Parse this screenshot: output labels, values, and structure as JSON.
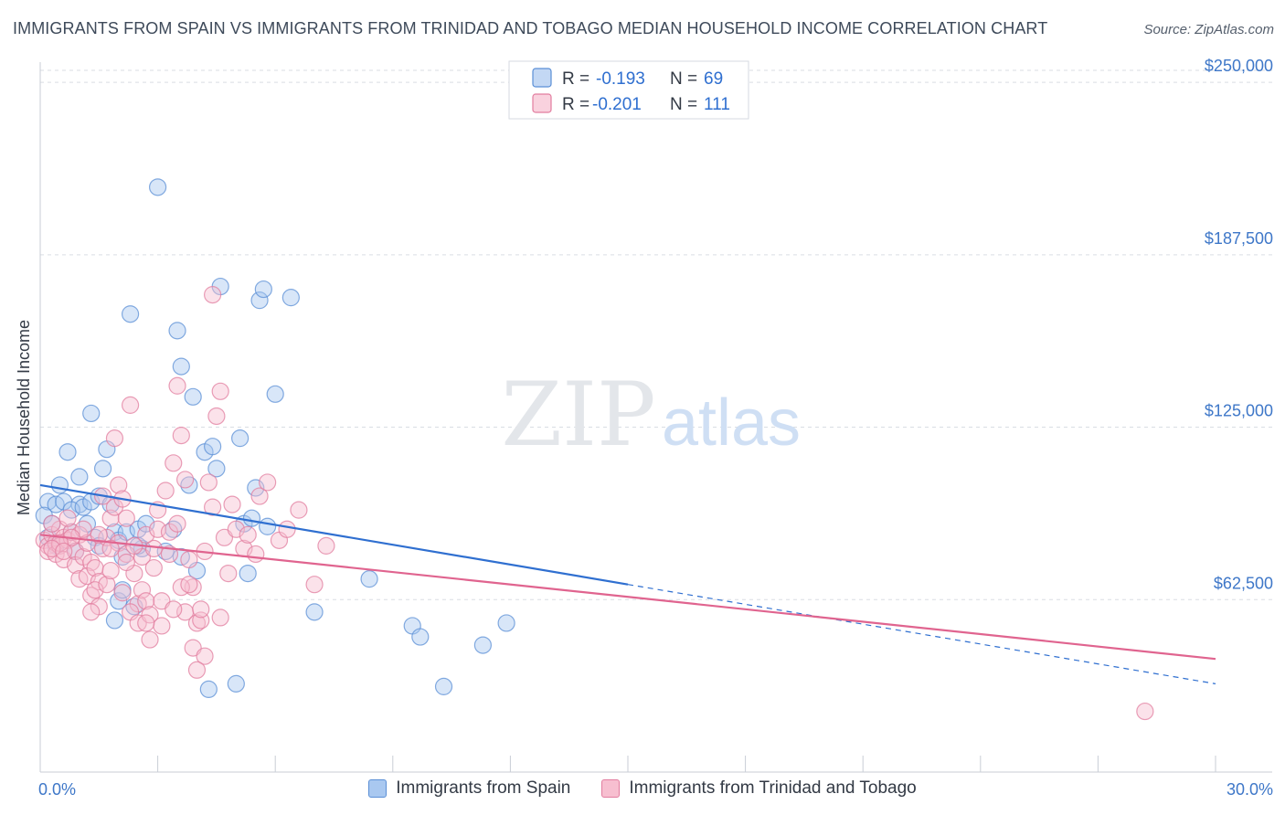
{
  "title": "IMMIGRANTS FROM SPAIN VS IMMIGRANTS FROM TRINIDAD AND TOBAGO MEDIAN HOUSEHOLD INCOME CORRELATION CHART",
  "source": "Source: ZipAtlas.com",
  "watermark": {
    "zip": "ZIP",
    "atlas": "atlas"
  },
  "colors": {
    "spain_fill": "#a9c8f0",
    "spain_stroke": "#5b8fd6",
    "spain_line": "#2f6fd0",
    "tt_fill": "#f7bfd0",
    "tt_stroke": "#e27d9f",
    "tt_line": "#e0648f",
    "grid": "#d9dde3",
    "label": "#3e77c8"
  },
  "legend": {
    "items": [
      {
        "r_label": "R = ",
        "r_value": "-0.193",
        "n_label": "N = ",
        "n_value": "69"
      },
      {
        "r_label": "R = ",
        "r_value": "-0.201",
        "n_label": "N = ",
        "n_value": "111"
      }
    ]
  },
  "bottom_legend": [
    "Immigrants from Spain",
    "Immigrants from Trinidad and Tobago"
  ],
  "chart_data": {
    "type": "scatter",
    "xlabel": "",
    "ylabel": "Median Household Income",
    "xlim": [
      0,
      30
    ],
    "ylim": [
      0,
      255000
    ],
    "x_tick_labels": [
      {
        "value": 0,
        "label": "0.0%"
      },
      {
        "value": 30,
        "label": "30.0%"
      }
    ],
    "y_ticks": [
      {
        "value": 62500,
        "label": "$62,500"
      },
      {
        "value": 125000,
        "label": "$125,000"
      },
      {
        "value": 187500,
        "label": "$187,500"
      },
      {
        "value": 250000,
        "label": "$250,000"
      }
    ],
    "series": [
      {
        "name": "Immigrants from Spain",
        "r": -0.193,
        "n": 69,
        "trend": {
          "x0": 0,
          "y0": 104000,
          "x1": 15,
          "y1": 68000,
          "dash_to_x": 30,
          "dash_to_y": 32000
        },
        "points": [
          [
            0.2,
            98000
          ],
          [
            0.4,
            97000
          ],
          [
            0.1,
            93000
          ],
          [
            0.3,
            90000
          ],
          [
            0.5,
            104000
          ],
          [
            0.6,
            98000
          ],
          [
            0.2,
            85000
          ],
          [
            0.4,
            82000
          ],
          [
            0.7,
            116000
          ],
          [
            0.8,
            87000
          ],
          [
            1.0,
            107000
          ],
          [
            1.0,
            97000
          ],
          [
            0.8,
            95000
          ],
          [
            1.1,
            96000
          ],
          [
            1.2,
            90000
          ],
          [
            0.9,
            80000
          ],
          [
            1.3,
            98000
          ],
          [
            1.4,
            85000
          ],
          [
            1.5,
            100000
          ],
          [
            1.6,
            110000
          ],
          [
            1.7,
            117000
          ],
          [
            1.5,
            82000
          ],
          [
            1.3,
            130000
          ],
          [
            1.8,
            97000
          ],
          [
            1.9,
            87000
          ],
          [
            2.0,
            84000
          ],
          [
            2.1,
            78000
          ],
          [
            2.2,
            87000
          ],
          [
            2.0,
            62000
          ],
          [
            1.9,
            55000
          ],
          [
            2.1,
            66000
          ],
          [
            2.5,
            88000
          ],
          [
            2.6,
            81000
          ],
          [
            2.3,
            166000
          ],
          [
            3.2,
            80000
          ],
          [
            3.8,
            104000
          ],
          [
            3.4,
            88000
          ],
          [
            2.7,
            90000
          ],
          [
            3.6,
            78000
          ],
          [
            4.0,
            73000
          ],
          [
            2.5,
            82000
          ],
          [
            2.4,
            60000
          ],
          [
            3.0,
            212000
          ],
          [
            3.5,
            160000
          ],
          [
            3.9,
            136000
          ],
          [
            3.6,
            147000
          ],
          [
            4.2,
            116000
          ],
          [
            4.4,
            118000
          ],
          [
            4.5,
            110000
          ],
          [
            4.3,
            30000
          ],
          [
            4.6,
            176000
          ],
          [
            5.0,
            32000
          ],
          [
            5.1,
            121000
          ],
          [
            5.2,
            90000
          ],
          [
            5.3,
            72000
          ],
          [
            5.5,
            103000
          ],
          [
            5.4,
            92000
          ],
          [
            5.6,
            171000
          ],
          [
            5.8,
            89000
          ],
          [
            6.0,
            137000
          ],
          [
            6.4,
            172000
          ],
          [
            5.7,
            175000
          ],
          [
            7.0,
            58000
          ],
          [
            8.4,
            70000
          ],
          [
            9.5,
            53000
          ],
          [
            9.7,
            49000
          ],
          [
            10.3,
            31000
          ],
          [
            11.3,
            46000
          ],
          [
            11.9,
            54000
          ]
        ]
      },
      {
        "name": "Immigrants from Trinidad and Tobago",
        "r": -0.201,
        "n": 111,
        "trend": {
          "x0": 0,
          "y0": 86000,
          "x1": 30,
          "y1": 41000
        },
        "points": [
          [
            0.1,
            84000
          ],
          [
            0.2,
            82000
          ],
          [
            0.3,
            86000
          ],
          [
            0.2,
            80000
          ],
          [
            0.4,
            83000
          ],
          [
            0.5,
            88000
          ],
          [
            0.3,
            90000
          ],
          [
            0.6,
            85000
          ],
          [
            0.4,
            79000
          ],
          [
            0.5,
            82000
          ],
          [
            0.7,
            84000
          ],
          [
            0.6,
            77000
          ],
          [
            0.8,
            87000
          ],
          [
            0.9,
            80000
          ],
          [
            0.7,
            92000
          ],
          [
            1.0,
            86000
          ],
          [
            0.9,
            75000
          ],
          [
            1.1,
            78000
          ],
          [
            1.0,
            70000
          ],
          [
            1.2,
            83000
          ],
          [
            1.3,
            76000
          ],
          [
            1.2,
            71000
          ],
          [
            1.4,
            74000
          ],
          [
            1.5,
            69000
          ],
          [
            1.3,
            64000
          ],
          [
            1.4,
            66000
          ],
          [
            1.6,
            81000
          ],
          [
            1.5,
            60000
          ],
          [
            1.7,
            85000
          ],
          [
            1.6,
            100000
          ],
          [
            1.8,
            92000
          ],
          [
            1.9,
            96000
          ],
          [
            1.7,
            68000
          ],
          [
            1.8,
            73000
          ],
          [
            2.0,
            104000
          ],
          [
            2.1,
            99000
          ],
          [
            1.9,
            121000
          ],
          [
            2.2,
            92000
          ],
          [
            2.0,
            83000
          ],
          [
            2.3,
            133000
          ],
          [
            2.2,
            79000
          ],
          [
            2.4,
            72000
          ],
          [
            2.1,
            65000
          ],
          [
            2.5,
            61000
          ],
          [
            2.3,
            58000
          ],
          [
            2.6,
            66000
          ],
          [
            2.7,
            62000
          ],
          [
            2.5,
            54000
          ],
          [
            2.8,
            57000
          ],
          [
            2.6,
            78000
          ],
          [
            2.9,
            81000
          ],
          [
            2.7,
            86000
          ],
          [
            3.0,
            88000
          ],
          [
            2.8,
            48000
          ],
          [
            3.1,
            53000
          ],
          [
            3.2,
            102000
          ],
          [
            3.0,
            95000
          ],
          [
            3.3,
            87000
          ],
          [
            3.4,
            112000
          ],
          [
            3.5,
            140000
          ],
          [
            3.3,
            79000
          ],
          [
            3.6,
            122000
          ],
          [
            3.7,
            106000
          ],
          [
            3.5,
            90000
          ],
          [
            3.8,
            77000
          ],
          [
            3.9,
            67000
          ],
          [
            3.7,
            58000
          ],
          [
            4.0,
            54000
          ],
          [
            4.1,
            55000
          ],
          [
            3.9,
            45000
          ],
          [
            4.2,
            42000
          ],
          [
            4.0,
            37000
          ],
          [
            4.3,
            105000
          ],
          [
            4.4,
            96000
          ],
          [
            4.2,
            80000
          ],
          [
            4.5,
            129000
          ],
          [
            4.6,
            138000
          ],
          [
            4.4,
            173000
          ],
          [
            4.7,
            85000
          ],
          [
            4.8,
            72000
          ],
          [
            4.6,
            56000
          ],
          [
            4.9,
            97000
          ],
          [
            5.0,
            88000
          ],
          [
            5.2,
            81000
          ],
          [
            5.3,
            86000
          ],
          [
            5.5,
            79000
          ],
          [
            5.6,
            100000
          ],
          [
            5.8,
            105000
          ],
          [
            6.1,
            84000
          ],
          [
            6.3,
            88000
          ],
          [
            6.6,
            95000
          ],
          [
            7.0,
            68000
          ],
          [
            7.3,
            82000
          ],
          [
            1.1,
            88000
          ],
          [
            0.8,
            85000
          ],
          [
            0.5,
            83000
          ],
          [
            1.5,
            86000
          ],
          [
            2.4,
            82000
          ],
          [
            3.1,
            62000
          ],
          [
            3.6,
            67000
          ],
          [
            2.9,
            74000
          ],
          [
            1.8,
            81000
          ],
          [
            2.2,
            76000
          ],
          [
            3.4,
            59000
          ],
          [
            4.1,
            59000
          ],
          [
            1.3,
            58000
          ],
          [
            2.7,
            54000
          ],
          [
            3.8,
            68000
          ],
          [
            0.3,
            81000
          ],
          [
            0.6,
            80000
          ],
          [
            28.2,
            22000
          ]
        ]
      }
    ]
  }
}
